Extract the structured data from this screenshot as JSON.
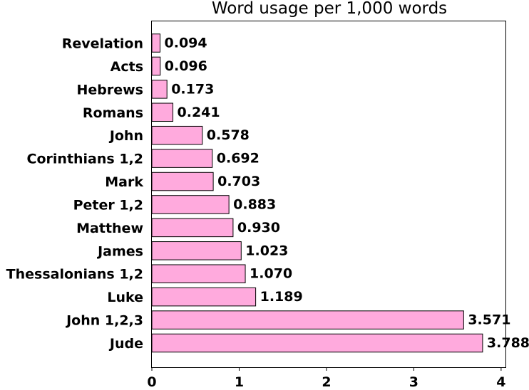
{
  "chart_data": {
    "type": "bar",
    "orientation": "horizontal",
    "title": "Word usage per 1,000 words",
    "xlabel": "",
    "ylabel": "",
    "categories": [
      "Revelation",
      "Acts",
      "Hebrews",
      "Romans",
      "John",
      "Corinthians 1,2",
      "Mark",
      "Peter 1,2",
      "Matthew",
      "James",
      "Thessalonians 1,2",
      "Luke",
      "John 1,2,3",
      "Jude"
    ],
    "values": [
      0.094,
      0.096,
      0.173,
      0.241,
      0.578,
      0.692,
      0.703,
      0.883,
      0.93,
      1.023,
      1.07,
      1.189,
      3.571,
      3.788
    ],
    "value_labels": [
      "0.094",
      "0.096",
      "0.173",
      "0.241",
      "0.578",
      "0.692",
      "0.703",
      "0.883",
      "0.930",
      "1.023",
      "1.070",
      "1.189",
      "3.571",
      "3.788"
    ],
    "xlim": [
      0,
      4.05
    ],
    "xticks": [
      0,
      1,
      2,
      3,
      4
    ],
    "xtick_labels": [
      "0",
      "1",
      "2",
      "3",
      "4"
    ],
    "grid": false,
    "legend": "none",
    "bar_color": "#ffaadd",
    "bar_edge_color": "#000000"
  }
}
